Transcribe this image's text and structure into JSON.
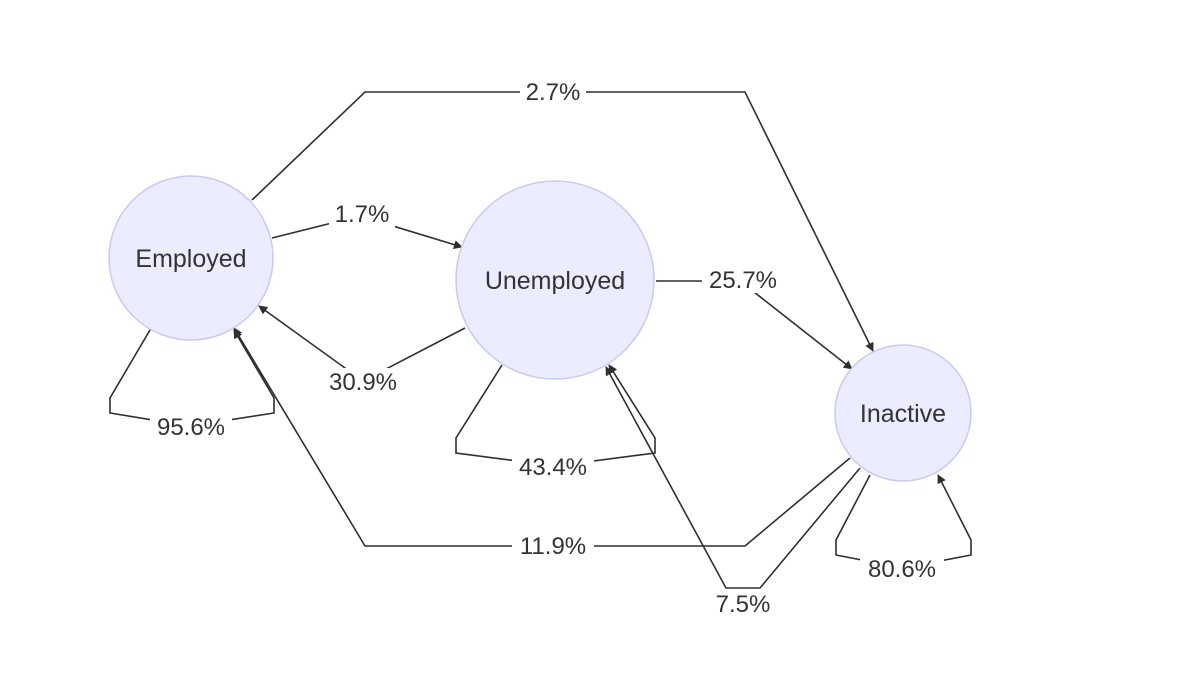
{
  "nodes": [
    {
      "id": "employed",
      "label": "Employed"
    },
    {
      "id": "unemployed",
      "label": "Unemployed"
    },
    {
      "id": "inactive",
      "label": "Inactive"
    }
  ],
  "edges": [
    {
      "id": "employed-to-inactive",
      "from": "employed",
      "to": "inactive",
      "label": "2.7%"
    },
    {
      "id": "employed-to-unemployed",
      "from": "employed",
      "to": "unemployed",
      "label": "1.7%"
    },
    {
      "id": "unemployed-to-employed",
      "from": "unemployed",
      "to": "employed",
      "label": "30.9%"
    },
    {
      "id": "employed-to-employed",
      "from": "employed",
      "to": "employed",
      "label": "95.6%"
    },
    {
      "id": "unemployed-to-inactive",
      "from": "unemployed",
      "to": "inactive",
      "label": "25.7%"
    },
    {
      "id": "unemployed-to-unemployed",
      "from": "unemployed",
      "to": "unemployed",
      "label": "43.4%"
    },
    {
      "id": "inactive-to-employed",
      "from": "inactive",
      "to": "employed",
      "label": "11.9%"
    },
    {
      "id": "inactive-to-unemployed",
      "from": "inactive",
      "to": "unemployed",
      "label": "7.5%"
    },
    {
      "id": "inactive-to-inactive",
      "from": "inactive",
      "to": "inactive",
      "label": "80.6%"
    }
  ]
}
